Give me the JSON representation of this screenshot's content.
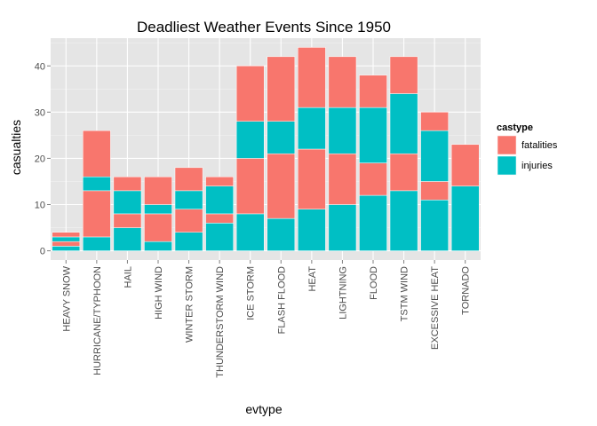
{
  "chart_data": {
    "type": "bar",
    "stacked": true,
    "title": "Deadliest Weather Events Since 1950",
    "xlabel": "evtype",
    "ylabel": "casualties",
    "ylim": [
      -2,
      46
    ],
    "yticks": [
      0,
      10,
      20,
      30,
      40
    ],
    "grid": true,
    "legend": {
      "title": "castype",
      "position": "right",
      "entries": [
        {
          "name": "fatalities",
          "color": "#F8766D"
        },
        {
          "name": "injuries",
          "color": "#00BFC4"
        }
      ]
    },
    "colors": {
      "panel_bg": "#E5E5E5",
      "grid_major": "#FFFFFF",
      "grid_minor": "#F2F2F2",
      "bar_separator": "#FFFFFF"
    },
    "categories": [
      "HEAVY SNOW",
      "HURRICANE/TYPHOON",
      "HAIL",
      "HIGH WIND",
      "WINTER STORM",
      "THUNDERSTORM WIND",
      "ICE STORM",
      "FLASH FLOOD",
      "HEAT",
      "LIGHTNING",
      "FLOOD",
      "TSTM WIND",
      "EXCESSIVE HEAT",
      "TORNADO"
    ],
    "stacks": [
      [
        {
          "type": "injuries",
          "value": 1
        },
        {
          "type": "fatalities",
          "value": 1
        },
        {
          "type": "injuries",
          "value": 1
        },
        {
          "type": "fatalities",
          "value": 1
        }
      ],
      [
        {
          "type": "injuries",
          "value": 3
        },
        {
          "type": "fatalities",
          "value": 10
        },
        {
          "type": "injuries",
          "value": 3
        },
        {
          "type": "fatalities",
          "value": 10
        }
      ],
      [
        {
          "type": "injuries",
          "value": 5
        },
        {
          "type": "fatalities",
          "value": 3
        },
        {
          "type": "injuries",
          "value": 5
        },
        {
          "type": "fatalities",
          "value": 3
        }
      ],
      [
        {
          "type": "injuries",
          "value": 2
        },
        {
          "type": "fatalities",
          "value": 6
        },
        {
          "type": "injuries",
          "value": 2
        },
        {
          "type": "fatalities",
          "value": 6
        }
      ],
      [
        {
          "type": "injuries",
          "value": 4
        },
        {
          "type": "fatalities",
          "value": 5
        },
        {
          "type": "injuries",
          "value": 4
        },
        {
          "type": "fatalities",
          "value": 5
        }
      ],
      [
        {
          "type": "injuries",
          "value": 6
        },
        {
          "type": "fatalities",
          "value": 2
        },
        {
          "type": "injuries",
          "value": 6
        },
        {
          "type": "fatalities",
          "value": 2
        }
      ],
      [
        {
          "type": "injuries",
          "value": 8
        },
        {
          "type": "fatalities",
          "value": 12
        },
        {
          "type": "injuries",
          "value": 8
        },
        {
          "type": "fatalities",
          "value": 12
        }
      ],
      [
        {
          "type": "injuries",
          "value": 7
        },
        {
          "type": "fatalities",
          "value": 14
        },
        {
          "type": "injuries",
          "value": 7
        },
        {
          "type": "fatalities",
          "value": 14
        }
      ],
      [
        {
          "type": "injuries",
          "value": 9
        },
        {
          "type": "fatalities",
          "value": 13
        },
        {
          "type": "injuries",
          "value": 9
        },
        {
          "type": "fatalities",
          "value": 13
        }
      ],
      [
        {
          "type": "injuries",
          "value": 10
        },
        {
          "type": "fatalities",
          "value": 11
        },
        {
          "type": "injuries",
          "value": 10
        },
        {
          "type": "fatalities",
          "value": 11
        }
      ],
      [
        {
          "type": "injuries",
          "value": 12
        },
        {
          "type": "fatalities",
          "value": 7
        },
        {
          "type": "injuries",
          "value": 12
        },
        {
          "type": "fatalities",
          "value": 7
        }
      ],
      [
        {
          "type": "injuries",
          "value": 13
        },
        {
          "type": "fatalities",
          "value": 8
        },
        {
          "type": "injuries",
          "value": 13
        },
        {
          "type": "fatalities",
          "value": 8
        }
      ],
      [
        {
          "type": "injuries",
          "value": 11
        },
        {
          "type": "fatalities",
          "value": 4
        },
        {
          "type": "injuries",
          "value": 11
        },
        {
          "type": "fatalities",
          "value": 4
        }
      ],
      [
        {
          "type": "injuries",
          "value": 14
        },
        {
          "type": "fatalities",
          "value": 9
        }
      ]
    ]
  }
}
